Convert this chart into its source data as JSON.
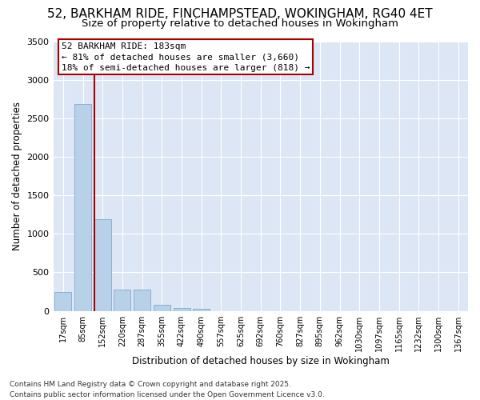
{
  "title_line1": "52, BARKHAM RIDE, FINCHAMPSTEAD, WOKINGHAM, RG40 4ET",
  "title_line2": "Size of property relative to detached houses in Wokingham",
  "xlabel": "Distribution of detached houses by size in Wokingham",
  "ylabel": "Number of detached properties",
  "categories": [
    "17sqm",
    "85sqm",
    "152sqm",
    "220sqm",
    "287sqm",
    "355sqm",
    "422sqm",
    "490sqm",
    "557sqm",
    "625sqm",
    "692sqm",
    "760sqm",
    "827sqm",
    "895sqm",
    "962sqm",
    "1030sqm",
    "1097sqm",
    "1165sqm",
    "1232sqm",
    "1300sqm",
    "1367sqm"
  ],
  "values": [
    250,
    2690,
    1190,
    280,
    280,
    80,
    40,
    25,
    0,
    0,
    0,
    0,
    0,
    0,
    0,
    0,
    0,
    0,
    0,
    0,
    0
  ],
  "bar_color": "#b8d0e8",
  "bar_edge_color": "#6fa0c8",
  "vline_color": "#aa0000",
  "annotation_text": "52 BARKHAM RIDE: 183sqm\n← 81% of detached houses are smaller (3,660)\n18% of semi-detached houses are larger (818) →",
  "annotation_box_edgecolor": "#aa0000",
  "ylim": [
    0,
    3500
  ],
  "yticks": [
    0,
    500,
    1000,
    1500,
    2000,
    2500,
    3000,
    3500
  ],
  "plot_bg_color": "#dce6f5",
  "fig_bg_color": "#ffffff",
  "grid_color": "#ffffff",
  "footer_line1": "Contains HM Land Registry data © Crown copyright and database right 2025.",
  "footer_line2": "Contains public sector information licensed under the Open Government Licence v3.0.",
  "title_fontsize": 11,
  "subtitle_fontsize": 9.5,
  "axis_label_fontsize": 8.5,
  "tick_fontsize": 7,
  "annotation_fontsize": 8,
  "footer_fontsize": 6.5
}
